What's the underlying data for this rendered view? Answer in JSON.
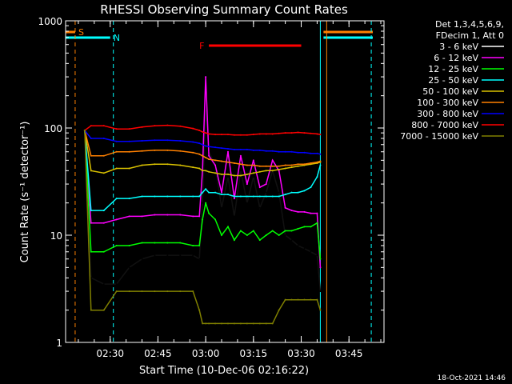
{
  "chart_data": {
    "type": "line",
    "title": "RHESSI Observing Summary Count Rates",
    "xlabel": "Start Time (10-Dec-06 02:16:22)",
    "ylabel": "Count Rate (s⁻¹ detector⁻¹)",
    "y_scale": "log",
    "ylim": [
      1,
      1000
    ],
    "xlim_minutes": [
      "02:16",
      "03:56"
    ],
    "x_ticks": [
      "02:30",
      "02:45",
      "03:00",
      "03:15",
      "03:30",
      "03:45"
    ],
    "y_ticks": [
      "1",
      "10",
      "100",
      "1000"
    ],
    "grid": false,
    "legend_position": "right",
    "legend_header": [
      "Det 1,3,4,5,6,9,",
      "FDecim 1, Att 0"
    ],
    "footer_timestamp": "18-Oct-2021 14:46",
    "flags": [
      {
        "label": "S",
        "color": "#ff8000",
        "x_start": "02:16",
        "x_end": "02:19"
      },
      {
        "label": "N",
        "color": "#00ffff",
        "x_start": "02:16",
        "x_end": "02:30"
      },
      {
        "label": "F",
        "color": "#ff0000",
        "x_start": "03:01",
        "x_end": "03:30"
      }
    ],
    "series": [
      {
        "name": "3 - 6 keV",
        "color": "#000000",
        "x": [
          "02:22",
          "02:24",
          "02:28",
          "02:32",
          "02:36",
          "02:40",
          "02:44",
          "02:48",
          "02:52",
          "02:56",
          "02:58",
          "02:59",
          "03:00",
          "03:01",
          "03:03",
          "03:05",
          "03:07",
          "03:09",
          "03:11",
          "03:13",
          "03:15",
          "03:17",
          "03:19",
          "03:21",
          "03:23",
          "03:25",
          "03:27",
          "03:29",
          "03:31",
          "03:33",
          "03:35",
          "03:36"
        ],
        "y": [
          95,
          4,
          3.5,
          3.5,
          5,
          6,
          6.5,
          6.5,
          6.5,
          6.5,
          6,
          20,
          150,
          60,
          45,
          18,
          35,
          15,
          40,
          20,
          35,
          18,
          25,
          40,
          25,
          10,
          9,
          8,
          7.5,
          7,
          6.5,
          3
        ]
      },
      {
        "name": "6 - 12 keV",
        "color": "#ff00ff",
        "x": [
          "02:22",
          "02:24",
          "02:28",
          "02:32",
          "02:36",
          "02:40",
          "02:44",
          "02:48",
          "02:52",
          "02:56",
          "02:58",
          "02:59",
          "03:00",
          "03:01",
          "03:03",
          "03:05",
          "03:07",
          "03:09",
          "03:11",
          "03:13",
          "03:15",
          "03:17",
          "03:19",
          "03:21",
          "03:23",
          "03:25",
          "03:27",
          "03:29",
          "03:31",
          "03:33",
          "03:35",
          "03:36"
        ],
        "y": [
          95,
          13,
          13,
          14,
          15,
          15,
          15.5,
          15.5,
          15.5,
          15,
          15,
          40,
          300,
          55,
          45,
          25,
          60,
          22,
          55,
          30,
          50,
          28,
          30,
          50,
          40,
          18,
          17,
          16.5,
          16.5,
          16,
          16,
          5
        ]
      },
      {
        "name": "12 - 25 keV",
        "color": "#00ff00",
        "x": [
          "02:22",
          "02:24",
          "02:28",
          "02:32",
          "02:36",
          "02:40",
          "02:44",
          "02:48",
          "02:52",
          "02:56",
          "02:58",
          "02:59",
          "03:00",
          "03:01",
          "03:03",
          "03:05",
          "03:07",
          "03:09",
          "03:11",
          "03:13",
          "03:15",
          "03:17",
          "03:19",
          "03:21",
          "03:23",
          "03:25",
          "03:27",
          "03:29",
          "03:31",
          "03:33",
          "03:35",
          "03:36"
        ],
        "y": [
          95,
          7,
          7,
          8,
          8,
          8.5,
          8.5,
          8.5,
          8.5,
          8,
          8,
          14,
          20,
          16,
          14,
          10,
          12,
          9,
          11,
          10,
          11,
          9,
          10,
          11,
          10,
          11,
          11,
          11.5,
          12,
          12,
          13,
          6
        ]
      },
      {
        "name": "25 - 50 keV",
        "color": "#00ffff",
        "x": [
          "02:22",
          "02:24",
          "02:28",
          "02:32",
          "02:36",
          "02:40",
          "02:44",
          "02:48",
          "02:52",
          "02:56",
          "02:58",
          "02:59",
          "03:00",
          "03:01",
          "03:03",
          "03:05",
          "03:07",
          "03:09",
          "03:11",
          "03:13",
          "03:15",
          "03:17",
          "03:19",
          "03:21",
          "03:23",
          "03:25",
          "03:27",
          "03:29",
          "03:31",
          "03:33",
          "03:35",
          "03:36"
        ],
        "y": [
          95,
          17,
          17,
          22,
          22,
          23,
          23,
          23,
          23,
          23,
          23,
          25,
          27,
          25,
          25,
          24,
          24,
          23,
          23,
          23,
          23,
          23,
          23,
          23,
          23,
          24,
          25,
          25,
          26,
          28,
          35,
          45
        ]
      },
      {
        "name": "50 - 100 keV",
        "color": "#d8c000",
        "x": [
          "02:22",
          "02:24",
          "02:28",
          "02:32",
          "02:36",
          "02:40",
          "02:44",
          "02:48",
          "02:52",
          "02:56",
          "02:58",
          "02:59",
          "03:00",
          "03:01",
          "03:03",
          "03:05",
          "03:07",
          "03:09",
          "03:11",
          "03:13",
          "03:15",
          "03:17",
          "03:19",
          "03:21",
          "03:23",
          "03:25",
          "03:27",
          "03:29",
          "03:31",
          "03:33",
          "03:35",
          "03:36"
        ],
        "y": [
          95,
          40,
          38,
          42,
          42,
          45,
          46,
          46,
          45,
          43,
          42,
          40,
          40,
          39,
          38,
          37,
          37,
          36,
          36,
          37,
          38,
          39,
          40,
          40,
          41,
          42,
          43,
          44,
          45,
          46,
          47,
          48
        ]
      },
      {
        "name": "100 - 300 keV",
        "color": "#ff8000",
        "x": [
          "02:22",
          "02:24",
          "02:28",
          "02:32",
          "02:36",
          "02:40",
          "02:44",
          "02:48",
          "02:52",
          "02:56",
          "02:58",
          "02:59",
          "03:00",
          "03:01",
          "03:03",
          "03:05",
          "03:07",
          "03:09",
          "03:11",
          "03:13",
          "03:15",
          "03:17",
          "03:19",
          "03:21",
          "03:23",
          "03:25",
          "03:27",
          "03:29",
          "03:31",
          "03:33",
          "03:35",
          "03:36"
        ],
        "y": [
          95,
          55,
          55,
          60,
          60,
          61,
          62,
          62,
          61,
          59,
          57,
          55,
          53,
          51,
          50,
          49,
          48,
          47,
          46,
          45,
          45,
          44,
          44,
          44,
          44,
          45,
          45,
          46,
          46,
          47,
          48,
          49
        ]
      },
      {
        "name": "300 - 800 keV",
        "color": "#0000ff",
        "x": [
          "02:22",
          "02:24",
          "02:28",
          "02:32",
          "02:36",
          "02:40",
          "02:44",
          "02:48",
          "02:52",
          "02:56",
          "02:58",
          "02:59",
          "03:00",
          "03:01",
          "03:03",
          "03:05",
          "03:07",
          "03:09",
          "03:11",
          "03:13",
          "03:15",
          "03:17",
          "03:19",
          "03:21",
          "03:23",
          "03:25",
          "03:27",
          "03:29",
          "03:31",
          "03:33",
          "03:35",
          "03:36"
        ],
        "y": [
          95,
          80,
          80,
          75,
          75,
          76,
          77,
          77,
          76,
          74,
          72,
          70,
          68,
          67,
          66,
          65,
          64,
          63,
          63,
          63,
          62,
          62,
          61,
          61,
          60,
          60,
          60,
          59,
          59,
          58,
          58,
          57
        ]
      },
      {
        "name": "800 - 7000 keV",
        "color": "#ff0000",
        "x": [
          "02:22",
          "02:24",
          "02:28",
          "02:32",
          "02:36",
          "02:40",
          "02:44",
          "02:48",
          "02:52",
          "02:56",
          "02:58",
          "02:59",
          "03:00",
          "03:01",
          "03:03",
          "03:05",
          "03:07",
          "03:09",
          "03:11",
          "03:13",
          "03:15",
          "03:17",
          "03:19",
          "03:21",
          "03:23",
          "03:25",
          "03:27",
          "03:29",
          "03:31",
          "03:33",
          "03:35",
          "03:36"
        ],
        "y": [
          95,
          105,
          105,
          98,
          98,
          102,
          105,
          106,
          104,
          99,
          95,
          92,
          90,
          88,
          87,
          87,
          87,
          86,
          86,
          86,
          87,
          88,
          88,
          88,
          89,
          90,
          90,
          91,
          90,
          89,
          88,
          87
        ]
      },
      {
        "name": "7000 - 15000 keV",
        "color": "#808000",
        "x": [
          "02:22",
          "02:24",
          "02:28",
          "02:32",
          "02:36",
          "02:40",
          "02:44",
          "02:48",
          "02:52",
          "02:56",
          "02:58",
          "02:59",
          "03:00",
          "03:01",
          "03:03",
          "03:05",
          "03:07",
          "03:09",
          "03:11",
          "03:13",
          "03:15",
          "03:17",
          "03:19",
          "03:21",
          "03:23",
          "03:25",
          "03:27",
          "03:29",
          "03:31",
          "03:33",
          "03:35",
          "03:36"
        ],
        "y": [
          95,
          2,
          2,
          3,
          3,
          3,
          3,
          3,
          3,
          3,
          2,
          1.5,
          1.5,
          1.5,
          1.5,
          1.5,
          1.5,
          1.5,
          1.5,
          1.5,
          1.5,
          1.5,
          1.5,
          1.5,
          2,
          2.5,
          2.5,
          2.5,
          2.5,
          2.5,
          2.5,
          2
        ]
      }
    ]
  }
}
